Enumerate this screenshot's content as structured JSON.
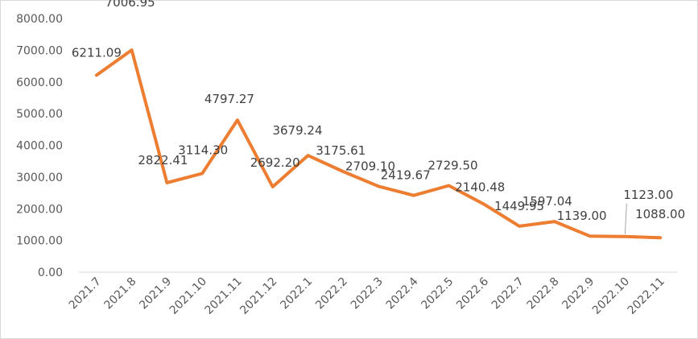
{
  "chart_data": {
    "type": "line",
    "title": "",
    "xlabel": "",
    "ylabel": "",
    "ylim": [
      0,
      8000
    ],
    "y_ticks": [
      "0.00",
      "1000.00",
      "2000.00",
      "3000.00",
      "4000.00",
      "5000.00",
      "6000.00",
      "7000.00",
      "8000.00"
    ],
    "categories": [
      "2021.7",
      "2021.8",
      "2021.9",
      "2021.10",
      "2021.11",
      "2021.12",
      "2022.1",
      "2022.2",
      "2022.3",
      "2022.4",
      "2022.5",
      "2022.6",
      "2022.7",
      "2022.8",
      "2022.9",
      "2022.10",
      "2022.11"
    ],
    "values": [
      6211.09,
      7006.95,
      2822.41,
      3114.3,
      4797.27,
      2692.2,
      3679.24,
      3175.61,
      2709.1,
      2419.67,
      2729.5,
      2140.48,
      1449.95,
      1597.04,
      1139.0,
      1123.0,
      1088.0
    ],
    "data_labels": [
      "6211.09",
      "7006.95",
      "2822.41",
      "3114.30",
      "4797.27",
      "2692.20",
      "3679.24",
      "3175.61",
      "2709.10",
      "2419.67",
      "2729.50",
      "2140.48",
      "1449.95",
      "1597.04",
      "1139.00",
      "1123.00",
      "1088.00"
    ],
    "grid": false,
    "legend": "none",
    "line_color": "#ED7D31",
    "text_color": "#595959"
  }
}
